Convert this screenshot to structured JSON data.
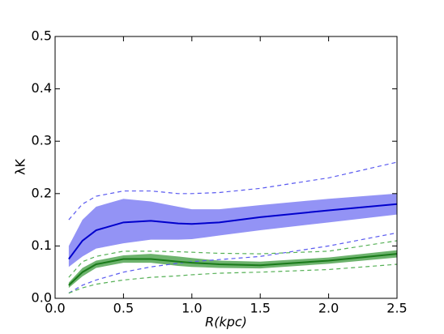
{
  "chart_data": {
    "type": "line",
    "xlabel": "R(kpc)",
    "ylabel": "λK",
    "x": [
      0.1,
      0.2,
      0.3,
      0.5,
      0.7,
      0.9,
      1.0,
      1.2,
      1.5,
      2.0,
      2.5
    ],
    "xlim": [
      0,
      2.5
    ],
    "xticks": [
      {
        "value": 0,
        "label": "0.0"
      },
      0.5,
      {
        "value": 1,
        "label": "1.0"
      },
      1.5,
      {
        "value": 2,
        "label": "2.0"
      },
      2.5
    ],
    "ylim": [
      0,
      0.5
    ],
    "yticks": [
      {
        "value": 0,
        "label": "0.0"
      },
      0.1,
      0.2,
      0.3,
      0.4,
      0.5
    ],
    "bands": [
      {
        "color": "#6f6ff2",
        "upper": [
          0.1,
          0.15,
          0.175,
          0.19,
          0.185,
          0.175,
          0.17,
          0.17,
          0.178,
          0.19,
          0.2
        ],
        "lower": [
          0.06,
          0.08,
          0.095,
          0.105,
          0.112,
          0.112,
          0.113,
          0.12,
          0.13,
          0.145,
          0.16
        ]
      },
      {
        "color": "#3c9a3c",
        "upper": [
          0.03,
          0.058,
          0.072,
          0.082,
          0.085,
          0.08,
          0.077,
          0.072,
          0.07,
          0.078,
          0.092
        ],
        "lower": [
          0.02,
          0.042,
          0.058,
          0.068,
          0.068,
          0.062,
          0.06,
          0.058,
          0.057,
          0.066,
          0.078
        ]
      }
    ],
    "series": [
      {
        "color": "#0000cc",
        "dashed": false,
        "values": [
          0.075,
          0.11,
          0.13,
          0.145,
          0.148,
          0.143,
          0.142,
          0.145,
          0.155,
          0.168,
          0.18
        ]
      },
      {
        "color": "#5a5af0",
        "dashed": true,
        "values": [
          0.15,
          0.18,
          0.195,
          0.205,
          0.205,
          0.2,
          0.2,
          0.202,
          0.21,
          0.23,
          0.26
        ]
      },
      {
        "color": "#5a5af0",
        "dashed": true,
        "values": [
          0.01,
          0.025,
          0.035,
          0.05,
          0.06,
          0.067,
          0.07,
          0.074,
          0.08,
          0.1,
          0.125
        ]
      },
      {
        "color": "#1a7a1a",
        "dashed": false,
        "values": [
          0.025,
          0.05,
          0.065,
          0.075,
          0.075,
          0.07,
          0.068,
          0.065,
          0.063,
          0.072,
          0.085
        ]
      },
      {
        "color": "#55b055",
        "dashed": true,
        "values": [
          0.04,
          0.07,
          0.08,
          0.09,
          0.09,
          0.089,
          0.088,
          0.086,
          0.085,
          0.09,
          0.11
        ]
      },
      {
        "color": "#55b055",
        "dashed": true,
        "values": [
          0.01,
          0.02,
          0.027,
          0.035,
          0.04,
          0.043,
          0.045,
          0.048,
          0.05,
          0.055,
          0.065
        ]
      }
    ]
  }
}
